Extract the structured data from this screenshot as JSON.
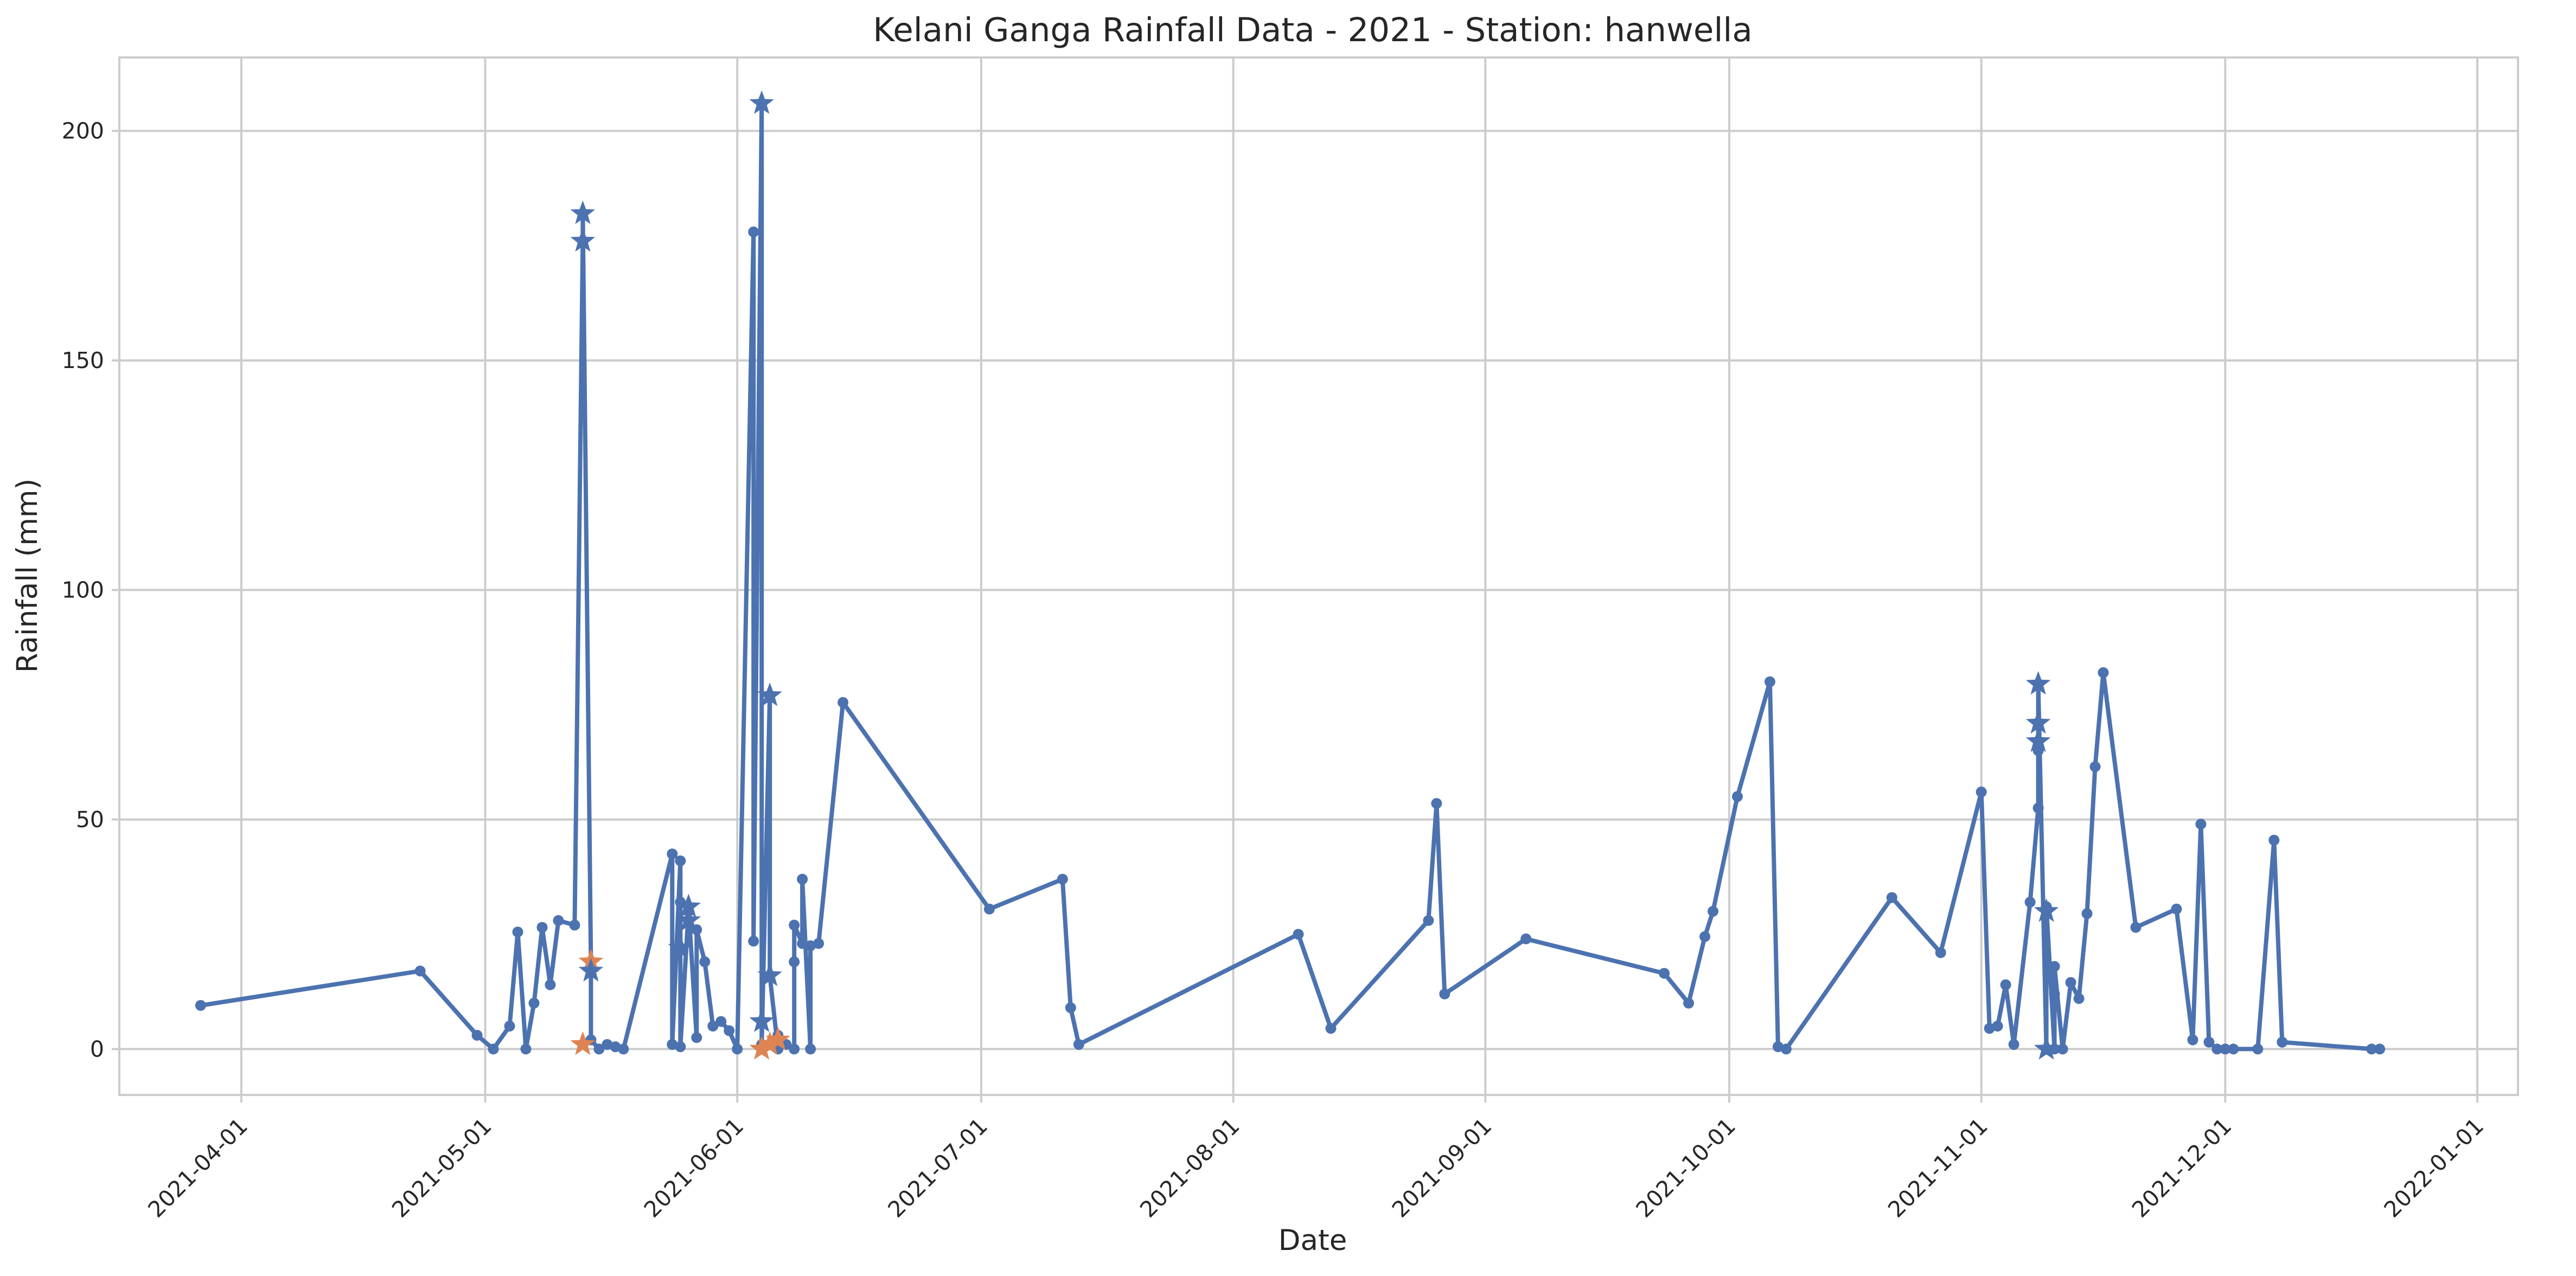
{
  "chart_data": {
    "type": "line",
    "title": "Kelani Ganga Rainfall Data - 2021 - Station: hanwella",
    "xlabel": "Date",
    "ylabel": "Rainfall (mm)",
    "x_axis_type": "date",
    "xlim": [
      "2021-03-17",
      "2022-01-06"
    ],
    "ylim": [
      -10,
      216
    ],
    "grid": true,
    "x_ticks": [
      "2021-04-01",
      "2021-05-01",
      "2021-06-01",
      "2021-07-01",
      "2021-08-01",
      "2021-09-01",
      "2021-10-01",
      "2021-11-01",
      "2021-12-01",
      "2022-01-01"
    ],
    "y_ticks": [
      0,
      50,
      100,
      150,
      200
    ],
    "colors": {
      "line": "#4c72b0",
      "highlight": "#dd8452",
      "grid": "#cccccc",
      "text": "#262626"
    },
    "series": [
      {
        "color": "#4c72b0",
        "marker": "circle",
        "points": [
          [
            "2021-03-27",
            9.5
          ],
          [
            "2021-04-23",
            17
          ],
          [
            "2021-04-30",
            3
          ],
          [
            "2021-05-02",
            0
          ],
          [
            "2021-05-04",
            5
          ],
          [
            "2021-05-05",
            25.5
          ],
          [
            "2021-05-06",
            0
          ],
          [
            "2021-05-07",
            10
          ],
          [
            "2021-05-08",
            26.5
          ],
          [
            "2021-05-09",
            14
          ],
          [
            "2021-05-10",
            28
          ],
          [
            "2021-05-12",
            27
          ],
          [
            "2021-05-13",
            176
          ],
          [
            "2021-05-13",
            182
          ],
          [
            "2021-05-14",
            19
          ],
          [
            "2021-05-14",
            2
          ],
          [
            "2021-05-15",
            0
          ],
          [
            "2021-05-16",
            1
          ],
          [
            "2021-05-17",
            0.5
          ],
          [
            "2021-05-18",
            0
          ],
          [
            "2021-05-24",
            42.5
          ],
          [
            "2021-05-24",
            1
          ],
          [
            "2021-05-25",
            41
          ],
          [
            "2021-05-25",
            32
          ],
          [
            "2021-05-25",
            0.5
          ],
          [
            "2021-05-26",
            30
          ],
          [
            "2021-05-26",
            31
          ],
          [
            "2021-05-27",
            2.5
          ],
          [
            "2021-05-27",
            26
          ],
          [
            "2021-05-28",
            19
          ],
          [
            "2021-05-29",
            5
          ],
          [
            "2021-05-30",
            6
          ],
          [
            "2021-05-31",
            4
          ],
          [
            "2021-06-01",
            0
          ],
          [
            "2021-06-03",
            178
          ],
          [
            "2021-06-03",
            23.5
          ],
          [
            "2021-06-04",
            206
          ],
          [
            "2021-06-04",
            1
          ],
          [
            "2021-06-05",
            77
          ],
          [
            "2021-06-05",
            16
          ],
          [
            "2021-06-06",
            0
          ],
          [
            "2021-06-06",
            3
          ],
          [
            "2021-06-07",
            1
          ],
          [
            "2021-06-08",
            0
          ],
          [
            "2021-06-08",
            19
          ],
          [
            "2021-06-08",
            27
          ],
          [
            "2021-06-09",
            23
          ],
          [
            "2021-06-09",
            37
          ],
          [
            "2021-06-10",
            0
          ],
          [
            "2021-06-10",
            22.5
          ],
          [
            "2021-06-11",
            23
          ],
          [
            "2021-06-14",
            75.5
          ],
          [
            "2021-07-02",
            30.5
          ],
          [
            "2021-07-11",
            37
          ],
          [
            "2021-07-12",
            9
          ],
          [
            "2021-07-13",
            1
          ],
          [
            "2021-08-09",
            25
          ],
          [
            "2021-08-13",
            4.5
          ],
          [
            "2021-08-25",
            28
          ],
          [
            "2021-08-26",
            53.5
          ],
          [
            "2021-08-27",
            12
          ],
          [
            "2021-09-06",
            24
          ],
          [
            "2021-09-23",
            16.5
          ],
          [
            "2021-09-26",
            10
          ],
          [
            "2021-09-28",
            24.5
          ],
          [
            "2021-09-29",
            30
          ],
          [
            "2021-10-02",
            55
          ],
          [
            "2021-10-06",
            80
          ],
          [
            "2021-10-07",
            0.5
          ],
          [
            "2021-10-08",
            0
          ],
          [
            "2021-10-21",
            33
          ],
          [
            "2021-10-27",
            21
          ],
          [
            "2021-11-01",
            56
          ],
          [
            "2021-11-02",
            4.5
          ],
          [
            "2021-11-03",
            5
          ],
          [
            "2021-11-04",
            14
          ],
          [
            "2021-11-05",
            1
          ],
          [
            "2021-11-07",
            32
          ],
          [
            "2021-11-08",
            52.5
          ],
          [
            "2021-11-08",
            65
          ],
          [
            "2021-11-08",
            67
          ],
          [
            "2021-11-08",
            71
          ],
          [
            "2021-11-08",
            79.5
          ],
          [
            "2021-11-09",
            0
          ],
          [
            "2021-11-09",
            30
          ],
          [
            "2021-11-09",
            31
          ],
          [
            "2021-11-10",
            0
          ],
          [
            "2021-11-10",
            12
          ],
          [
            "2021-11-10",
            18
          ],
          [
            "2021-11-11",
            0
          ],
          [
            "2021-11-12",
            14.5
          ],
          [
            "2021-11-13",
            11
          ],
          [
            "2021-11-14",
            29.5
          ],
          [
            "2021-11-15",
            61.5
          ],
          [
            "2021-11-16",
            82
          ],
          [
            "2021-11-20",
            26.5
          ],
          [
            "2021-11-25",
            30.5
          ],
          [
            "2021-11-27",
            2
          ],
          [
            "2021-11-28",
            49
          ],
          [
            "2021-11-29",
            1.5
          ],
          [
            "2021-11-30",
            0
          ],
          [
            "2021-12-01",
            0
          ],
          [
            "2021-12-02",
            0
          ],
          [
            "2021-12-05",
            0
          ],
          [
            "2021-12-07",
            45.5
          ],
          [
            "2021-12-08",
            1.5
          ],
          [
            "2021-12-19",
            0
          ],
          [
            "2021-12-20",
            0
          ]
        ]
      }
    ],
    "star_markers": [
      {
        "x": "2021-05-13",
        "y": 182,
        "color": "#4c72b0"
      },
      {
        "x": "2021-05-13",
        "y": 176,
        "color": "#4c72b0"
      },
      {
        "x": "2021-05-14",
        "y": 19,
        "color": "#dd8452"
      },
      {
        "x": "2021-05-14",
        "y": 17,
        "color": "#4c72b0"
      },
      {
        "x": "2021-05-13",
        "y": 1,
        "color": "#dd8452"
      },
      {
        "x": "2021-05-26",
        "y": 31,
        "color": "#4c72b0"
      },
      {
        "x": "2021-05-26",
        "y": 28,
        "color": "#4c72b0"
      },
      {
        "x": "2021-05-25",
        "y": 22,
        "color": "#4c72b0"
      },
      {
        "x": "2021-06-04",
        "y": 206,
        "color": "#4c72b0"
      },
      {
        "x": "2021-06-05",
        "y": 77,
        "color": "#4c72b0"
      },
      {
        "x": "2021-06-05",
        "y": 16,
        "color": "#4c72b0"
      },
      {
        "x": "2021-06-04",
        "y": 6,
        "color": "#4c72b0"
      },
      {
        "x": "2021-06-05",
        "y": 1,
        "color": "#dd8452"
      },
      {
        "x": "2021-06-04",
        "y": 0,
        "color": "#dd8452"
      },
      {
        "x": "2021-06-06",
        "y": 2,
        "color": "#dd8452"
      },
      {
        "x": "2021-11-08",
        "y": 79.5,
        "color": "#4c72b0"
      },
      {
        "x": "2021-11-08",
        "y": 71,
        "color": "#4c72b0"
      },
      {
        "x": "2021-11-08",
        "y": 67,
        "color": "#4c72b0"
      },
      {
        "x": "2021-11-09",
        "y": 0,
        "color": "#4c72b0"
      },
      {
        "x": "2021-11-09",
        "y": 30,
        "color": "#4c72b0"
      }
    ]
  }
}
